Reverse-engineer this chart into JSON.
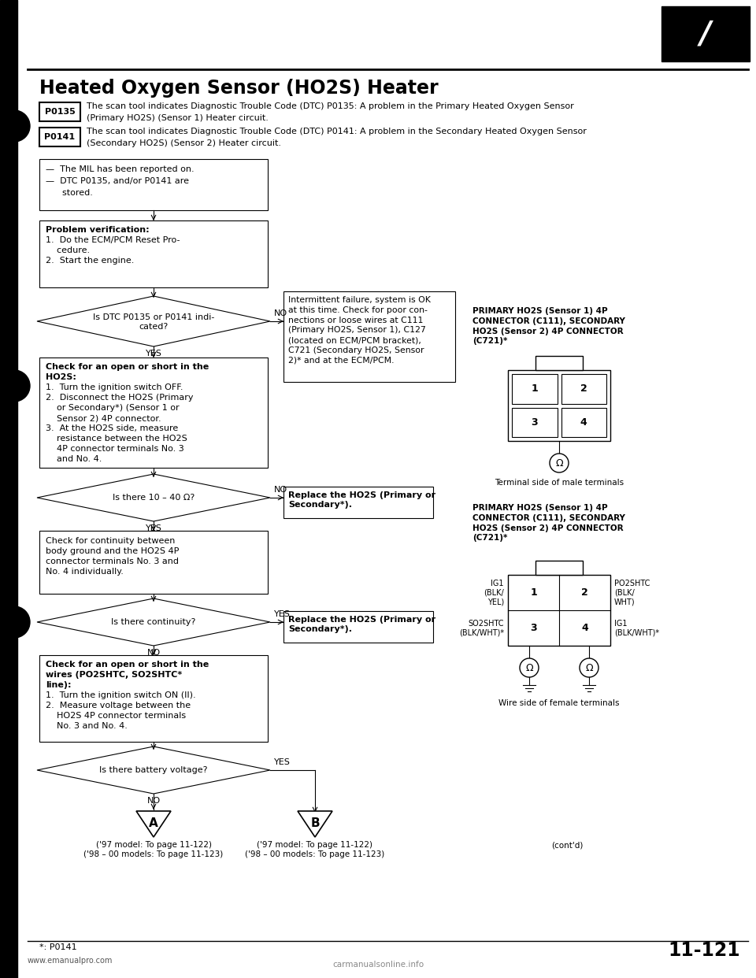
{
  "title": "Heated Oxygen Sensor (HO2S) Heater",
  "bg_color": "#ffffff",
  "page_number": "11-121",
  "p0135_text1": "The scan tool indicates Diagnostic Trouble Code (DTC) P0135: A problem in the Primary Heated Oxygen Sensor",
  "p0135_text2": "(Primary HO2S) (Sensor 1) Heater circuit.",
  "p0141_text1": "The scan tool indicates Diagnostic Trouble Code (DTC) P0141: A problem in the Secondary Heated Oxygen Sensor",
  "p0141_text2": "(Secondary HO2S) (Sensor 2) Heater circuit.",
  "mil_text": "—  The MIL has been reported on.\n—  DTC P0135, and/or P0141 are\n      stored.",
  "pv_title": "Problem verification:",
  "pv_body": "1.  Do the ECM/PCM Reset Pro-\n    cedure.\n2.  Start the engine.",
  "d1_text": "Is DTC P0135 or P0141 indi-\ncated?",
  "int_text": "Intermittent failure, system is OK\nat this time. Check for poor con-\nnections or loose wires at C111\n(Primary HO2S, Sensor 1), C127\n(located on ECM/PCM bracket),\nC721 (Secondary HO2S, Sensor\n2)* and at the ECM/PCM.",
  "ch_title1": "Check for an open or short in the",
  "ch_title2": "HO2S:",
  "ch_body": "1.  Turn the ignition switch OFF.\n2.  Disconnect the HO2S (Primary\n    or Secondary*) (Sensor 1 or\n    Sensor 2) 4P connector.\n3.  At the HO2S side, measure\n    resistance between the HO2S\n    4P connector terminals No. 3\n    and No. 4.",
  "d2_text": "Is there 10 – 40 Ω?",
  "rep1_text": "Replace the HO2S (Primary or\nSecondary*).",
  "cc_text": "Check for continuity between\nbody ground and the HO2S 4P\nconnector terminals No. 3 and\nNo. 4 individually.",
  "d3_text": "Is there continuity?",
  "rep2_text": "Replace the HO2S (Primary or\nSecondary*).",
  "cw_title1": "Check for an open or short in the",
  "cw_title2": "wires (PO2SHTC, SO2SHTC*",
  "cw_title3": "line):",
  "cw_body": "1.  Turn the ignition switch ON (II).\n2.  Measure voltage between the\n    HO2S 4P connector terminals\n    No. 3 and No. 4.",
  "d4_text": "Is there battery voltage?",
  "pri_connector_label": "PRIMARY HO2S (Sensor 1) 4P\nCONNECTOR (C111), SECONDARY\nHO2S (Sensor 2) 4P CONNECTOR\n(C721)*",
  "terminal_label": "Terminal side of male terminals",
  "sec_connector_label": "PRIMARY HO2S (Sensor 1) 4P\nCONNECTOR (C111), SECONDARY\nHO2S (Sensor 2) 4P CONNECTOR\n(C721)*",
  "wire_label": "Wire side of female terminals",
  "ig1_blk_yel": "IG1\n(BLK/\nYEL)",
  "po2shtc": "PO2SHTC\n(BLK/\nWHT)",
  "so2shtc": "SO2SHTC\n(BLK/WHT)*",
  "ig1_blk_wht": "IG1\n(BLK/WHT)*",
  "ref_a": "('97 model: To page 11-122)\n('98 – 00 models: To page 11-123)",
  "ref_b": "('97 model: To page 11-122)\n('98 – 00 models: To page 11-123)",
  "contd": "(cont'd)",
  "footnote": "*: P0141",
  "website": "www.emanualpro.com",
  "watermark": "carmanualsonline.info"
}
